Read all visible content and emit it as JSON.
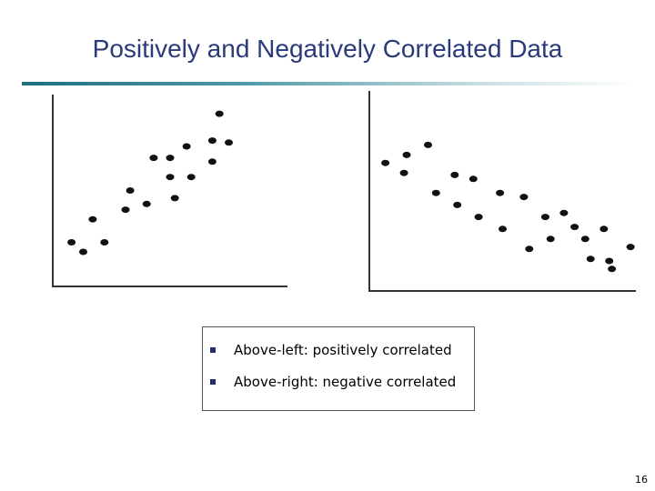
{
  "slide": {
    "title": "Positively and Negatively Correlated Data",
    "page_number": "16"
  },
  "caption": {
    "items": [
      "Above-left: positively correlated",
      "Above-right: negative correlated"
    ]
  },
  "colors": {
    "title": "#2b3a7a",
    "bullet": "#1f2d6b",
    "rule": "#1f6f80"
  },
  "chart_data": [
    {
      "type": "scatter",
      "title": "",
      "xlabel": "",
      "ylabel": "",
      "xlim": [
        0,
        10
      ],
      "ylim": [
        0,
        10
      ],
      "grid": false,
      "points": [
        [
          0.8,
          2.3
        ],
        [
          1.3,
          1.8
        ],
        [
          1.7,
          3.5
        ],
        [
          2.2,
          2.3
        ],
        [
          3.1,
          4.0
        ],
        [
          3.3,
          5.0
        ],
        [
          4.0,
          4.3
        ],
        [
          4.3,
          6.7
        ],
        [
          5.0,
          6.7
        ],
        [
          5.0,
          5.7
        ],
        [
          5.2,
          4.6
        ],
        [
          5.7,
          7.3
        ],
        [
          5.9,
          5.7
        ],
        [
          6.8,
          6.5
        ],
        [
          6.8,
          7.6
        ],
        [
          7.1,
          9.0
        ],
        [
          7.5,
          7.5
        ]
      ]
    },
    {
      "type": "scatter",
      "title": "",
      "xlabel": "",
      "ylabel": "",
      "xlim": [
        0,
        10
      ],
      "ylim": [
        0,
        10
      ],
      "grid": false,
      "points": [
        [
          0.6,
          6.4
        ],
        [
          1.3,
          5.9
        ],
        [
          1.4,
          6.8
        ],
        [
          2.2,
          7.3
        ],
        [
          2.5,
          4.9
        ],
        [
          3.2,
          5.8
        ],
        [
          3.3,
          4.3
        ],
        [
          3.9,
          5.6
        ],
        [
          4.1,
          3.7
        ],
        [
          4.9,
          4.9
        ],
        [
          5.0,
          3.1
        ],
        [
          5.8,
          4.7
        ],
        [
          6.0,
          2.1
        ],
        [
          6.6,
          3.7
        ],
        [
          6.8,
          2.6
        ],
        [
          7.3,
          3.9
        ],
        [
          7.7,
          3.2
        ],
        [
          8.1,
          2.6
        ],
        [
          8.3,
          1.6
        ],
        [
          8.8,
          3.1
        ],
        [
          9.0,
          1.5
        ],
        [
          9.1,
          1.1
        ],
        [
          9.8,
          2.2
        ]
      ]
    }
  ]
}
